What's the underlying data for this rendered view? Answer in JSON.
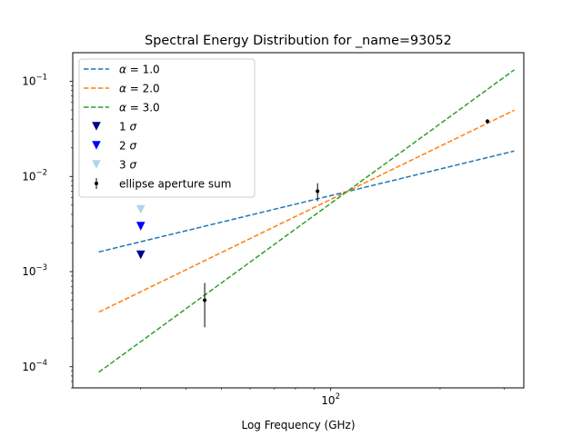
{
  "chart_data": {
    "type": "scatter",
    "title": "Spectral Energy Distribution for _name=93052",
    "xlabel": "Log Frequency (GHz)",
    "ylabel": "",
    "xscale": "log",
    "yscale": "log",
    "xlim": [
      19.5,
      340
    ],
    "ylim": [
      6e-05,
      0.2
    ],
    "grid": false,
    "legend_position": "top-left",
    "x_ticks": [
      {
        "value": 100,
        "base": "10",
        "exp": "2"
      }
    ],
    "x_minor_ticks": [
      30,
      40,
      50,
      60,
      70,
      80,
      90,
      200,
      300
    ],
    "y_ticks": [
      {
        "value": 0.0001,
        "base": "10",
        "exp": "−4"
      },
      {
        "value": 0.001,
        "base": "10",
        "exp": "−3"
      },
      {
        "value": 0.01,
        "base": "10",
        "exp": "−2"
      },
      {
        "value": 0.1,
        "base": "10",
        "exp": "−1"
      }
    ],
    "lines": [
      {
        "label_prefix": "α",
        "label_value": " = 1.0",
        "color": "#1f77b4",
        "x": [
          23,
          320
        ],
        "y": [
          0.00161,
          0.0185
        ]
      },
      {
        "label_prefix": "α",
        "label_value": " = 2.0",
        "color": "#ff7f0e",
        "x": [
          23,
          320
        ],
        "y": [
          0.000375,
          0.0497
        ]
      },
      {
        "label_prefix": "α",
        "label_value": " = 3.0",
        "color": "#2ca02c",
        "x": [
          23,
          320
        ],
        "y": [
          8.77e-05,
          0.132
        ]
      }
    ],
    "upper_limits": [
      {
        "label": "1 σ",
        "color": "#00008b",
        "x": 30,
        "y": 0.0015
      },
      {
        "label": "2 σ",
        "color": "#0000ff",
        "x": 30,
        "y": 0.003
      },
      {
        "label": "3 σ",
        "color": "#add8e6",
        "x": 30,
        "y": 0.0045
      }
    ],
    "measurements": {
      "label": "ellipse aperture sum",
      "color": "#000000",
      "points": [
        {
          "x": 45,
          "y": 0.0005,
          "ylow": 0.00026,
          "yhigh": 0.00076
        },
        {
          "x": 92,
          "y": 0.007,
          "ylow": 0.0055,
          "yhigh": 0.0085
        },
        {
          "x": 270,
          "y": 0.038,
          "ylow": 0.036,
          "yhigh": 0.04
        }
      ]
    }
  }
}
